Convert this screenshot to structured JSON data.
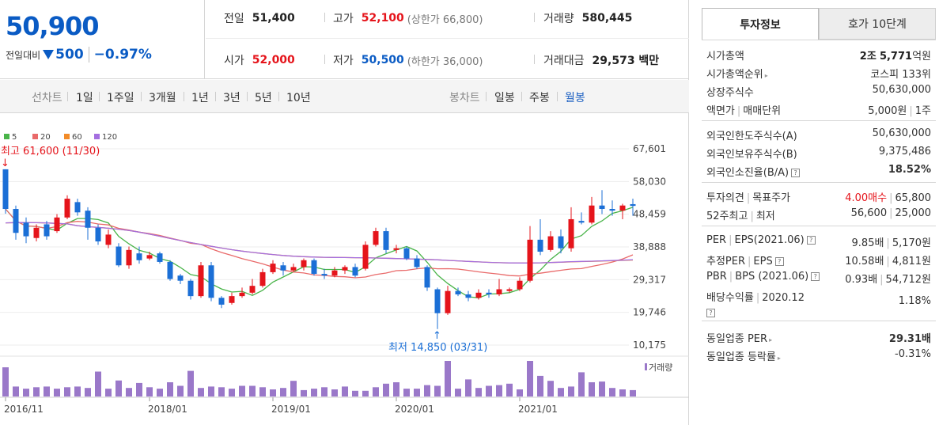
{
  "summary": {
    "price": "50,900",
    "change_label": "전일대비",
    "change_value": "500",
    "change_pct": "−0.97%",
    "prev_close_label": "전일",
    "prev_close": "51,400",
    "open_label": "시가",
    "open": "52,000",
    "high_label": "고가",
    "high": "52,100",
    "upper_limit": "(상한가 66,800)",
    "low_label": "저가",
    "low": "50,500",
    "lower_limit": "(하한가 36,000)",
    "volume_label": "거래량",
    "volume": "580,445",
    "amount_label": "거래대금",
    "amount": "29,573 백만"
  },
  "chart_tabs": {
    "line_label": "선차트",
    "line_items": [
      "1일",
      "1주일",
      "3개월",
      "1년",
      "3년",
      "5년",
      "10년"
    ],
    "candle_label": "봉차트",
    "candle_items": [
      "일봉",
      "주봉",
      "월봉"
    ],
    "candle_active": "월봉"
  },
  "colors": {
    "up": "#e5141b",
    "down": "#1b6fd6",
    "ma5": "#49b449",
    "ma20": "#e96a6a",
    "ma60": "#f28b28",
    "ma120": "#a46fe0",
    "volume": "#9a78c9"
  },
  "chart_data": {
    "type": "candlestick",
    "legend": [
      "5",
      "20",
      "60",
      "120"
    ],
    "y_ticks": [
      "67,601",
      "58,030",
      "48,459",
      "38,888",
      "29,317",
      "19,746",
      "10,175"
    ],
    "ylim": [
      10175,
      67601
    ],
    "x_ticks": [
      "2016/11",
      "2018/01",
      "2019/01",
      "2020/01",
      "2021/01"
    ],
    "annotation_high": "최고 61,600 (11/30)",
    "annotation_low": "최저 14,850 (03/31)",
    "volume_label": "거래량",
    "candles": [
      {
        "o": 61600,
        "c": 50000,
        "h": 61600,
        "l": 48600
      },
      {
        "o": 50000,
        "c": 43000,
        "h": 51000,
        "l": 41000
      },
      {
        "o": 46000,
        "c": 42000,
        "h": 47500,
        "l": 40000
      },
      {
        "o": 41500,
        "c": 44500,
        "h": 45500,
        "l": 40500
      },
      {
        "o": 45500,
        "c": 42000,
        "h": 46500,
        "l": 41000
      },
      {
        "o": 43500,
        "c": 47500,
        "h": 48500,
        "l": 43000
      },
      {
        "o": 47500,
        "c": 53000,
        "h": 54000,
        "l": 47000
      },
      {
        "o": 52000,
        "c": 49000,
        "h": 53000,
        "l": 48000
      },
      {
        "o": 49500,
        "c": 44500,
        "h": 50500,
        "l": 41000
      },
      {
        "o": 44500,
        "c": 40500,
        "h": 45500,
        "l": 39500
      },
      {
        "o": 39500,
        "c": 42500,
        "h": 44000,
        "l": 38500
      },
      {
        "o": 39000,
        "c": 33500,
        "h": 40000,
        "l": 33000
      },
      {
        "o": 33500,
        "c": 38000,
        "h": 39000,
        "l": 32500
      },
      {
        "o": 37000,
        "c": 35000,
        "h": 39000,
        "l": 34000
      },
      {
        "o": 35500,
        "c": 36500,
        "h": 37500,
        "l": 35000
      },
      {
        "o": 37000,
        "c": 34500,
        "h": 37500,
        "l": 34000
      },
      {
        "o": 34500,
        "c": 29500,
        "h": 35000,
        "l": 29000
      },
      {
        "o": 30500,
        "c": 29000,
        "h": 31000,
        "l": 28000
      },
      {
        "o": 29000,
        "c": 24500,
        "h": 29500,
        "l": 23500
      },
      {
        "o": 24500,
        "c": 33500,
        "h": 34500,
        "l": 24000
      },
      {
        "o": 33500,
        "c": 24000,
        "h": 34500,
        "l": 23000
      },
      {
        "o": 24000,
        "c": 22000,
        "h": 24500,
        "l": 21000
      },
      {
        "o": 22500,
        "c": 24500,
        "h": 25500,
        "l": 22000
      },
      {
        "o": 24500,
        "c": 25500,
        "h": 27000,
        "l": 24000
      },
      {
        "o": 25500,
        "c": 27500,
        "h": 29500,
        "l": 25000
      },
      {
        "o": 27500,
        "c": 31500,
        "h": 32500,
        "l": 27000
      },
      {
        "o": 31500,
        "c": 34000,
        "h": 35000,
        "l": 31000
      },
      {
        "o": 33500,
        "c": 32000,
        "h": 34500,
        "l": 30500
      },
      {
        "o": 32000,
        "c": 33000,
        "h": 34000,
        "l": 31500
      },
      {
        "o": 33000,
        "c": 35000,
        "h": 35500,
        "l": 32000
      },
      {
        "o": 35000,
        "c": 31000,
        "h": 35500,
        "l": 30500
      },
      {
        "o": 31000,
        "c": 30500,
        "h": 32500,
        "l": 29500
      },
      {
        "o": 30500,
        "c": 32000,
        "h": 33000,
        "l": 30000
      },
      {
        "o": 32000,
        "c": 33000,
        "h": 33500,
        "l": 31000
      },
      {
        "o": 33000,
        "c": 30500,
        "h": 34000,
        "l": 30000
      },
      {
        "o": 32500,
        "c": 39500,
        "h": 40500,
        "l": 32000
      },
      {
        "o": 39500,
        "c": 43500,
        "h": 44500,
        "l": 39000
      },
      {
        "o": 43500,
        "c": 38000,
        "h": 44500,
        "l": 37000
      },
      {
        "o": 38000,
        "c": 38500,
        "h": 39500,
        "l": 37000
      },
      {
        "o": 38500,
        "c": 35500,
        "h": 39000,
        "l": 35000
      },
      {
        "o": 35500,
        "c": 33000,
        "h": 36500,
        "l": 32500
      },
      {
        "o": 33000,
        "c": 27000,
        "h": 33500,
        "l": 26000
      },
      {
        "o": 26500,
        "c": 19500,
        "h": 27000,
        "l": 14850
      },
      {
        "o": 19500,
        "c": 26000,
        "h": 27500,
        "l": 19000
      },
      {
        "o": 26000,
        "c": 25000,
        "h": 27000,
        "l": 24500
      },
      {
        "o": 25000,
        "c": 24000,
        "h": 26000,
        "l": 23000
      },
      {
        "o": 24000,
        "c": 25500,
        "h": 26500,
        "l": 23500
      },
      {
        "o": 25500,
        "c": 25000,
        "h": 26500,
        "l": 24000
      },
      {
        "o": 25000,
        "c": 26500,
        "h": 29500,
        "l": 24500
      },
      {
        "o": 26000,
        "c": 26500,
        "h": 27000,
        "l": 25500
      },
      {
        "o": 26500,
        "c": 29000,
        "h": 30000,
        "l": 26000
      },
      {
        "o": 29000,
        "c": 41000,
        "h": 45000,
        "l": 28500
      },
      {
        "o": 41000,
        "c": 37500,
        "h": 47000,
        "l": 36500
      },
      {
        "o": 38000,
        "c": 42000,
        "h": 43500,
        "l": 37500
      },
      {
        "o": 42000,
        "c": 38500,
        "h": 44000,
        "l": 37000
      },
      {
        "o": 38500,
        "c": 47000,
        "h": 50500,
        "l": 37500
      },
      {
        "o": 46500,
        "c": 46000,
        "h": 49000,
        "l": 45500
      },
      {
        "o": 46000,
        "c": 51000,
        "h": 53500,
        "l": 45500
      },
      {
        "o": 51000,
        "c": 50000,
        "h": 55500,
        "l": 48500
      },
      {
        "o": 50000,
        "c": 49500,
        "h": 52500,
        "l": 48000
      },
      {
        "o": 49500,
        "c": 51000,
        "h": 51500,
        "l": 47000
      },
      {
        "o": 51400,
        "c": 50900,
        "h": 53000,
        "l": 48000
      }
    ],
    "volumes": [
      0.82,
      0.28,
      0.22,
      0.26,
      0.28,
      0.22,
      0.26,
      0.28,
      0.24,
      0.7,
      0.22,
      0.45,
      0.24,
      0.38,
      0.26,
      0.22,
      0.4,
      0.3,
      0.72,
      0.24,
      0.28,
      0.26,
      0.22,
      0.3,
      0.3,
      0.26,
      0.2,
      0.24,
      0.44,
      0.18,
      0.22,
      0.26,
      0.2,
      0.28,
      0.16,
      0.16,
      0.26,
      0.36,
      0.4,
      0.22,
      0.22,
      0.32,
      0.3,
      1.0,
      0.22,
      0.48,
      0.24,
      0.3,
      0.32,
      0.36,
      0.2,
      1.0,
      0.58,
      0.44,
      0.24,
      0.28,
      0.68,
      0.4,
      0.42,
      0.24,
      0.2,
      0.18
    ]
  },
  "invest_tabs": {
    "active": "투자정보",
    "inactive": "호가 10단계"
  },
  "invest": {
    "market_cap_label": "시가총액",
    "market_cap_jo": "2조",
    "market_cap_eok": "5,771",
    "market_cap_unit": "억원",
    "rank_label": "시가총액순위",
    "rank": "코스피 133위",
    "shares_label": "상장주식수",
    "shares": "50,630,000",
    "par_label": "액면가",
    "trade_unit_label": "매매단위",
    "par": "5,000원",
    "trade_unit": "1주",
    "foreign_limit_label": "외국인한도주식수(A)",
    "foreign_limit": "50,630,000",
    "foreign_hold_label": "외국인보유주식수(B)",
    "foreign_hold": "9,375,486",
    "foreign_ratio_label": "외국인소진율(B/A)",
    "foreign_ratio": "18.52%",
    "opinion_label": "투자의견",
    "target_label": "목표주가",
    "opinion": "4.00매수",
    "target": "65,800",
    "wk52_label": "52주최고",
    "wk52_low_label": "최저",
    "wk52_high": "56,600",
    "wk52_low": "25,000",
    "per_label": "PER",
    "eps_label": "EPS(2021.06)",
    "per": "9.85배",
    "eps": "5,170원",
    "est_per_label": "추정PER",
    "est_eps_label": "EPS",
    "est_per": "10.58배",
    "est_eps": "4,811원",
    "pbr_label": "PBR",
    "bps_label": "BPS (2021.06)",
    "pbr": "0.93배",
    "bps": "54,712원",
    "div_label": "배당수익률",
    "div_year": "2020.12",
    "div": "1.18%",
    "ind_per_label": "동일업종 PER",
    "ind_per": "29.31배",
    "ind_change_label": "동일업종 등락률",
    "ind_change": "-0.31%"
  }
}
